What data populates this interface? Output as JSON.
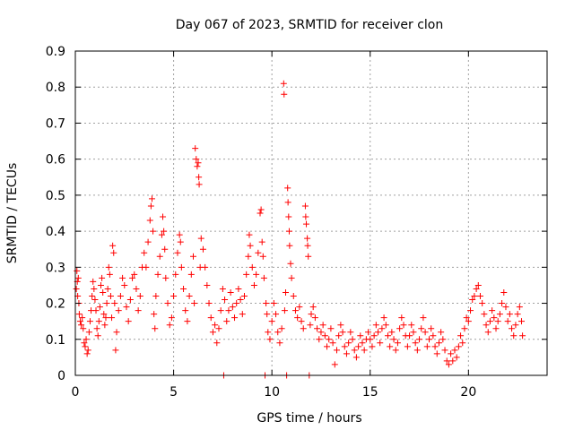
{
  "chart_data": {
    "type": "scatter",
    "title": "Day 067 of 2023, SRMTID for receiver clon",
    "xlabel": "GPS time / hours",
    "ylabel": "SRMTID / TECUs",
    "xlim": [
      0,
      24
    ],
    "ylim": [
      0,
      0.9
    ],
    "xticks": [
      "0",
      "5",
      "10",
      "15",
      "20"
    ],
    "yticks": [
      "0",
      "0.1",
      "0.2",
      "0.3",
      "0.4",
      "0.5",
      "0.6",
      "0.7",
      "0.8",
      "0.9"
    ],
    "grid": true,
    "marker": "plus",
    "color": "#ff0000",
    "series": [
      {
        "name": "SRMTID",
        "points": [
          [
            0.05,
            0.24
          ],
          [
            0.08,
            0.29
          ],
          [
            0.1,
            0.26
          ],
          [
            0.12,
            0.22
          ],
          [
            0.15,
            0.27
          ],
          [
            0.18,
            0.2
          ],
          [
            0.2,
            0.17
          ],
          [
            0.25,
            0.15
          ],
          [
            0.3,
            0.14
          ],
          [
            0.35,
            0.16
          ],
          [
            0.4,
            0.13
          ],
          [
            0.45,
            0.09
          ],
          [
            0.5,
            0.08
          ],
          [
            0.55,
            0.1
          ],
          [
            0.6,
            0.06
          ],
          [
            0.65,
            0.07
          ],
          [
            0.7,
            0.12
          ],
          [
            0.75,
            0.15
          ],
          [
            0.8,
            0.18
          ],
          [
            0.85,
            0.22
          ],
          [
            0.9,
            0.26
          ],
          [
            0.95,
            0.24
          ],
          [
            1.0,
            0.21
          ],
          [
            1.05,
            0.18
          ],
          [
            1.1,
            0.13
          ],
          [
            1.15,
            0.11
          ],
          [
            1.2,
            0.15
          ],
          [
            1.25,
            0.19
          ],
          [
            1.3,
            0.25
          ],
          [
            1.35,
            0.27
          ],
          [
            1.4,
            0.23
          ],
          [
            1.45,
            0.17
          ],
          [
            1.5,
            0.14
          ],
          [
            1.55,
            0.16
          ],
          [
            1.6,
            0.2
          ],
          [
            1.65,
            0.24
          ],
          [
            1.7,
            0.3
          ],
          [
            1.75,
            0.28
          ],
          [
            1.8,
            0.22
          ],
          [
            1.85,
            0.16
          ],
          [
            1.9,
            0.36
          ],
          [
            1.95,
            0.34
          ],
          [
            2.0,
            0.2
          ],
          [
            2.05,
            0.07
          ],
          [
            2.1,
            0.12
          ],
          [
            2.2,
            0.18
          ],
          [
            2.3,
            0.22
          ],
          [
            2.4,
            0.27
          ],
          [
            2.5,
            0.25
          ],
          [
            2.6,
            0.19
          ],
          [
            2.7,
            0.15
          ],
          [
            2.8,
            0.21
          ],
          [
            2.9,
            0.27
          ],
          [
            3.0,
            0.28
          ],
          [
            3.1,
            0.24
          ],
          [
            3.2,
            0.18
          ],
          [
            3.3,
            0.22
          ],
          [
            3.4,
            0.3
          ],
          [
            3.5,
            0.34
          ],
          [
            3.6,
            0.3
          ],
          [
            3.7,
            0.37
          ],
          [
            3.8,
            0.43
          ],
          [
            3.85,
            0.47
          ],
          [
            3.9,
            0.49
          ],
          [
            3.95,
            0.4
          ],
          [
            4.0,
            0.17
          ],
          [
            4.05,
            0.13
          ],
          [
            4.1,
            0.22
          ],
          [
            4.2,
            0.28
          ],
          [
            4.3,
            0.33
          ],
          [
            4.4,
            0.39
          ],
          [
            4.45,
            0.44
          ],
          [
            4.5,
            0.4
          ],
          [
            4.55,
            0.35
          ],
          [
            4.6,
            0.27
          ],
          [
            4.7,
            0.2
          ],
          [
            4.8,
            0.14
          ],
          [
            4.9,
            0.16
          ],
          [
            5.0,
            0.22
          ],
          [
            5.1,
            0.28
          ],
          [
            5.2,
            0.34
          ],
          [
            5.3,
            0.39
          ],
          [
            5.35,
            0.37
          ],
          [
            5.4,
            0.3
          ],
          [
            5.5,
            0.24
          ],
          [
            5.6,
            0.18
          ],
          [
            5.7,
            0.15
          ],
          [
            5.8,
            0.22
          ],
          [
            5.9,
            0.28
          ],
          [
            6.0,
            0.33
          ],
          [
            6.05,
            0.2
          ],
          [
            6.1,
            0.63
          ],
          [
            6.15,
            0.6
          ],
          [
            6.2,
            0.58
          ],
          [
            6.25,
            0.59
          ],
          [
            6.28,
            0.55
          ],
          [
            6.3,
            0.53
          ],
          [
            6.35,
            0.3
          ],
          [
            6.4,
            0.38
          ],
          [
            6.5,
            0.35
          ],
          [
            6.6,
            0.3
          ],
          [
            6.7,
            0.25
          ],
          [
            6.8,
            0.2
          ],
          [
            6.9,
            0.16
          ],
          [
            7.0,
            0.12
          ],
          [
            7.1,
            0.14
          ],
          [
            7.2,
            0.09
          ],
          [
            7.3,
            0.13
          ],
          [
            7.4,
            0.18
          ],
          [
            7.5,
            0.24
          ],
          [
            7.55,
            0.0
          ],
          [
            7.6,
            0.21
          ],
          [
            7.7,
            0.15
          ],
          [
            7.8,
            0.18
          ],
          [
            7.9,
            0.23
          ],
          [
            8.0,
            0.19
          ],
          [
            8.1,
            0.16
          ],
          [
            8.2,
            0.2
          ],
          [
            8.3,
            0.24
          ],
          [
            8.4,
            0.21
          ],
          [
            8.5,
            0.17
          ],
          [
            8.6,
            0.22
          ],
          [
            8.7,
            0.28
          ],
          [
            8.8,
            0.33
          ],
          [
            8.85,
            0.39
          ],
          [
            8.9,
            0.36
          ],
          [
            9.0,
            0.3
          ],
          [
            9.1,
            0.25
          ],
          [
            9.2,
            0.28
          ],
          [
            9.3,
            0.34
          ],
          [
            9.4,
            0.45
          ],
          [
            9.45,
            0.46
          ],
          [
            9.5,
            0.37
          ],
          [
            9.55,
            0.33
          ],
          [
            9.6,
            0.27
          ],
          [
            9.65,
            0.0
          ],
          [
            9.7,
            0.2
          ],
          [
            9.75,
            0.17
          ],
          [
            9.8,
            0.12
          ],
          [
            9.9,
            0.1
          ],
          [
            10.0,
            0.15
          ],
          [
            10.1,
            0.2
          ],
          [
            10.2,
            0.17
          ],
          [
            10.3,
            0.12
          ],
          [
            10.4,
            0.09
          ],
          [
            10.5,
            0.13
          ],
          [
            10.6,
            0.81
          ],
          [
            10.62,
            0.78
          ],
          [
            10.65,
            0.18
          ],
          [
            10.7,
            0.23
          ],
          [
            10.75,
            0.0
          ],
          [
            10.8,
            0.52
          ],
          [
            10.82,
            0.48
          ],
          [
            10.85,
            0.44
          ],
          [
            10.88,
            0.4
          ],
          [
            10.9,
            0.36
          ],
          [
            10.95,
            0.31
          ],
          [
            11.0,
            0.27
          ],
          [
            11.1,
            0.22
          ],
          [
            11.2,
            0.18
          ],
          [
            11.3,
            0.16
          ],
          [
            11.4,
            0.19
          ],
          [
            11.5,
            0.15
          ],
          [
            11.6,
            0.13
          ],
          [
            11.7,
            0.47
          ],
          [
            11.72,
            0.44
          ],
          [
            11.75,
            0.42
          ],
          [
            11.8,
            0.38
          ],
          [
            11.82,
            0.36
          ],
          [
            11.85,
            0.33
          ],
          [
            11.9,
            0.0
          ],
          [
            11.95,
            0.14
          ],
          [
            12.0,
            0.17
          ],
          [
            12.1,
            0.19
          ],
          [
            12.2,
            0.16
          ],
          [
            12.3,
            0.13
          ],
          [
            12.4,
            0.1
          ],
          [
            12.5,
            0.12
          ],
          [
            12.6,
            0.14
          ],
          [
            12.7,
            0.11
          ],
          [
            12.8,
            0.08
          ],
          [
            12.9,
            0.1
          ],
          [
            13.0,
            0.13
          ],
          [
            13.1,
            0.09
          ],
          [
            13.2,
            0.03
          ],
          [
            13.3,
            0.07
          ],
          [
            13.4,
            0.11
          ],
          [
            13.5,
            0.14
          ],
          [
            13.6,
            0.12
          ],
          [
            13.7,
            0.08
          ],
          [
            13.8,
            0.06
          ],
          [
            13.9,
            0.09
          ],
          [
            14.0,
            0.12
          ],
          [
            14.1,
            0.1
          ],
          [
            14.2,
            0.07
          ],
          [
            14.3,
            0.05
          ],
          [
            14.4,
            0.08
          ],
          [
            14.5,
            0.11
          ],
          [
            14.6,
            0.09
          ],
          [
            14.7,
            0.07
          ],
          [
            14.8,
            0.1
          ],
          [
            14.9,
            0.12
          ],
          [
            15.0,
            0.1
          ],
          [
            15.1,
            0.08
          ],
          [
            15.2,
            0.11
          ],
          [
            15.3,
            0.14
          ],
          [
            15.4,
            0.12
          ],
          [
            15.5,
            0.09
          ],
          [
            15.6,
            0.13
          ],
          [
            15.7,
            0.16
          ],
          [
            15.8,
            0.14
          ],
          [
            15.9,
            0.11
          ],
          [
            16.0,
            0.08
          ],
          [
            16.1,
            0.12
          ],
          [
            16.2,
            0.1
          ],
          [
            16.3,
            0.07
          ],
          [
            16.4,
            0.09
          ],
          [
            16.5,
            0.13
          ],
          [
            16.6,
            0.16
          ],
          [
            16.7,
            0.14
          ],
          [
            16.8,
            0.11
          ],
          [
            16.9,
            0.08
          ],
          [
            17.0,
            0.11
          ],
          [
            17.1,
            0.14
          ],
          [
            17.2,
            0.12
          ],
          [
            17.3,
            0.09
          ],
          [
            17.4,
            0.07
          ],
          [
            17.5,
            0.1
          ],
          [
            17.6,
            0.13
          ],
          [
            17.7,
            0.16
          ],
          [
            17.8,
            0.12
          ],
          [
            17.9,
            0.08
          ],
          [
            18.0,
            0.1
          ],
          [
            18.1,
            0.13
          ],
          [
            18.2,
            0.11
          ],
          [
            18.3,
            0.08
          ],
          [
            18.4,
            0.06
          ],
          [
            18.5,
            0.09
          ],
          [
            18.6,
            0.12
          ],
          [
            18.7,
            0.1
          ],
          [
            18.8,
            0.07
          ],
          [
            18.9,
            0.04
          ],
          [
            19.0,
            0.03
          ],
          [
            19.1,
            0.06
          ],
          [
            19.2,
            0.04
          ],
          [
            19.3,
            0.07
          ],
          [
            19.4,
            0.05
          ],
          [
            19.5,
            0.08
          ],
          [
            19.6,
            0.11
          ],
          [
            19.7,
            0.09
          ],
          [
            19.8,
            0.13
          ],
          [
            19.9,
            0.16
          ],
          [
            20.0,
            0.15
          ],
          [
            20.1,
            0.18
          ],
          [
            20.2,
            0.21
          ],
          [
            20.3,
            0.22
          ],
          [
            20.4,
            0.24
          ],
          [
            20.5,
            0.25
          ],
          [
            20.6,
            0.22
          ],
          [
            20.7,
            0.2
          ],
          [
            20.8,
            0.17
          ],
          [
            20.9,
            0.14
          ],
          [
            21.0,
            0.12
          ],
          [
            21.1,
            0.15
          ],
          [
            21.2,
            0.18
          ],
          [
            21.3,
            0.16
          ],
          [
            21.4,
            0.13
          ],
          [
            21.5,
            0.15
          ],
          [
            21.6,
            0.17
          ],
          [
            21.7,
            0.2
          ],
          [
            21.8,
            0.23
          ],
          [
            21.9,
            0.19
          ],
          [
            22.0,
            0.15
          ],
          [
            22.1,
            0.17
          ],
          [
            22.2,
            0.13
          ],
          [
            22.3,
            0.11
          ],
          [
            22.4,
            0.14
          ],
          [
            22.5,
            0.17
          ],
          [
            22.6,
            0.19
          ],
          [
            22.7,
            0.15
          ],
          [
            22.75,
            0.11
          ]
        ]
      }
    ]
  }
}
